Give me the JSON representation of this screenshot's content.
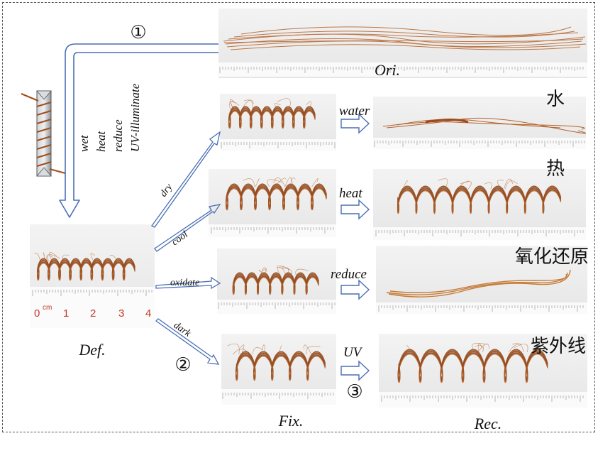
{
  "labels": {
    "ori": "Ori.",
    "def": "Def.",
    "fix": "Fix.",
    "rec": "Rec.",
    "step1": "①",
    "step2": "②",
    "step3": "③"
  },
  "deform_conditions": [
    "wet",
    "heat",
    "reduce",
    "UV-illuminate"
  ],
  "fix_conditions": [
    "dry",
    "cool",
    "oxidate",
    "dark"
  ],
  "recover_conditions": [
    "water",
    "heat",
    "reduce",
    "UV"
  ],
  "stimuli_cn": [
    "水",
    "热",
    "氧化还原",
    "紫外线"
  ],
  "ruler": {
    "unit": "cm",
    "ticks": [
      "0",
      "1",
      "2",
      "3",
      "4"
    ]
  },
  "colors": {
    "hair": "#b4622a",
    "hair_dark": "#7a3a14",
    "arrow_outline": "#4a6fb5",
    "rod": "#9aa2aa"
  }
}
